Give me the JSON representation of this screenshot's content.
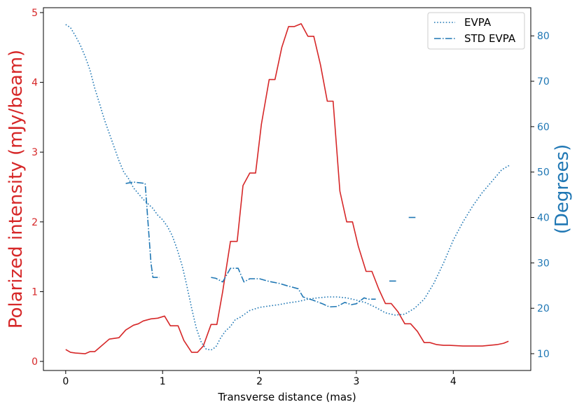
{
  "chart_data": {
    "type": "line",
    "xlabel": "Transverse distance (mas)",
    "ylabel_left": "Polarized intensity (mJy/beam)",
    "ylabel_right": "(Degrees)",
    "xlim": [
      -0.23,
      4.8
    ],
    "ylim_left": [
      -0.13,
      5.07
    ],
    "ylim_right": [
      6.3,
      86.2
    ],
    "x_ticks": [
      0,
      1,
      2,
      3,
      4
    ],
    "y_ticks_left": [
      0,
      1,
      2,
      3,
      4,
      5
    ],
    "y_ticks_right": [
      10,
      20,
      30,
      40,
      50,
      60,
      70,
      80
    ],
    "grid": false,
    "legend_position": "top-right",
    "colors": {
      "left_axis": "#d62728",
      "right_axis": "#1f77b4"
    },
    "series": [
      {
        "axis": "left",
        "style": "solid",
        "color": "#d62728",
        "points": [
          [
            0,
            0.17
          ],
          [
            0.05,
            0.13
          ],
          [
            0.1,
            0.12
          ],
          [
            0.2,
            0.11
          ],
          [
            0.25,
            0.14
          ],
          [
            0.3,
            0.14
          ],
          [
            0.35,
            0.2
          ],
          [
            0.45,
            0.32
          ],
          [
            0.55,
            0.34
          ],
          [
            0.62,
            0.45
          ],
          [
            0.7,
            0.52
          ],
          [
            0.75,
            0.54
          ],
          [
            0.8,
            0.58
          ],
          [
            0.88,
            0.61
          ],
          [
            0.95,
            0.62
          ],
          [
            1.02,
            0.65
          ],
          [
            1.08,
            0.51
          ],
          [
            1.16,
            0.51
          ],
          [
            1.22,
            0.3
          ],
          [
            1.3,
            0.13
          ],
          [
            1.36,
            0.13
          ],
          [
            1.42,
            0.22
          ],
          [
            1.5,
            0.53
          ],
          [
            1.56,
            0.53
          ],
          [
            1.62,
            1.0
          ],
          [
            1.7,
            1.72
          ],
          [
            1.77,
            1.72
          ],
          [
            1.83,
            2.52
          ],
          [
            1.9,
            2.7
          ],
          [
            1.96,
            2.7
          ],
          [
            2.02,
            3.4
          ],
          [
            2.1,
            4.04
          ],
          [
            2.16,
            4.04
          ],
          [
            2.23,
            4.5
          ],
          [
            2.3,
            4.8
          ],
          [
            2.36,
            4.8
          ],
          [
            2.43,
            4.84
          ],
          [
            2.5,
            4.66
          ],
          [
            2.56,
            4.66
          ],
          [
            2.63,
            4.25
          ],
          [
            2.7,
            3.73
          ],
          [
            2.76,
            3.73
          ],
          [
            2.83,
            2.44
          ],
          [
            2.9,
            2.0
          ],
          [
            2.96,
            2.0
          ],
          [
            3.02,
            1.65
          ],
          [
            3.1,
            1.29
          ],
          [
            3.16,
            1.29
          ],
          [
            3.23,
            1.04
          ],
          [
            3.3,
            0.83
          ],
          [
            3.36,
            0.83
          ],
          [
            3.43,
            0.71
          ],
          [
            3.5,
            0.54
          ],
          [
            3.56,
            0.54
          ],
          [
            3.63,
            0.43
          ],
          [
            3.7,
            0.27
          ],
          [
            3.76,
            0.27
          ],
          [
            3.83,
            0.24
          ],
          [
            3.9,
            0.23
          ],
          [
            3.96,
            0.23
          ],
          [
            4.1,
            0.22
          ],
          [
            4.3,
            0.22
          ],
          [
            4.45,
            0.24
          ],
          [
            4.52,
            0.26
          ],
          [
            4.57,
            0.29
          ]
        ]
      },
      {
        "name": "EVPA",
        "axis": "right",
        "style": "dotted",
        "color": "#1f77b4",
        "points": [
          [
            0,
            82.5
          ],
          [
            0.05,
            81.8
          ],
          [
            0.1,
            80.0
          ],
          [
            0.15,
            78.0
          ],
          [
            0.2,
            75.5
          ],
          [
            0.25,
            72.5
          ],
          [
            0.3,
            68.5
          ],
          [
            0.35,
            65.0
          ],
          [
            0.4,
            61.5
          ],
          [
            0.45,
            58.5
          ],
          [
            0.5,
            55.5
          ],
          [
            0.55,
            52.5
          ],
          [
            0.6,
            50.0
          ],
          [
            0.65,
            48.5
          ],
          [
            0.7,
            46.5
          ],
          [
            0.8,
            44.0
          ],
          [
            0.9,
            42.0
          ],
          [
            0.95,
            40.5
          ],
          [
            1.0,
            39.5
          ],
          [
            1.05,
            38.0
          ],
          [
            1.1,
            36.0
          ],
          [
            1.15,
            33.0
          ],
          [
            1.2,
            29.5
          ],
          [
            1.25,
            25.0
          ],
          [
            1.3,
            20.0
          ],
          [
            1.35,
            15.5
          ],
          [
            1.4,
            12.5
          ],
          [
            1.45,
            11.0
          ],
          [
            1.5,
            10.8
          ],
          [
            1.55,
            11.5
          ],
          [
            1.6,
            13.5
          ],
          [
            1.65,
            15.0
          ],
          [
            1.7,
            16.0
          ],
          [
            1.75,
            17.5
          ],
          [
            1.8,
            18.0
          ],
          [
            1.9,
            19.5
          ],
          [
            2.0,
            20.2
          ],
          [
            2.1,
            20.5
          ],
          [
            2.2,
            20.8
          ],
          [
            2.3,
            21.2
          ],
          [
            2.4,
            21.5
          ],
          [
            2.5,
            22.0
          ],
          [
            2.6,
            22.3
          ],
          [
            2.7,
            22.5
          ],
          [
            2.8,
            22.5
          ],
          [
            2.9,
            22.3
          ],
          [
            3.0,
            21.8
          ],
          [
            3.1,
            21.2
          ],
          [
            3.2,
            20.2
          ],
          [
            3.3,
            19.0
          ],
          [
            3.4,
            18.5
          ],
          [
            3.5,
            18.7
          ],
          [
            3.6,
            20.0
          ],
          [
            3.7,
            22.0
          ],
          [
            3.8,
            25.5
          ],
          [
            3.9,
            30.0
          ],
          [
            4.0,
            35.0
          ],
          [
            4.1,
            39.0
          ],
          [
            4.2,
            42.5
          ],
          [
            4.3,
            45.5
          ],
          [
            4.4,
            48.0
          ],
          [
            4.5,
            50.5
          ],
          [
            4.58,
            51.5
          ]
        ]
      },
      {
        "name": "STD EVPA",
        "axis": "right",
        "style": "dashdot",
        "color": "#1f77b4",
        "segments": [
          [
            [
              0.62,
              47.5
            ],
            [
              0.7,
              47.8
            ],
            [
              0.82,
              47.5
            ],
            [
              0.88,
              30.0
            ],
            [
              0.9,
              26.8
            ],
            [
              0.97,
              26.8
            ]
          ],
          [
            [
              1.5,
              26.8
            ],
            [
              1.55,
              26.6
            ],
            [
              1.62,
              25.8
            ],
            [
              1.7,
              28.8
            ],
            [
              1.78,
              28.8
            ],
            [
              1.84,
              25.8
            ],
            [
              1.9,
              26.5
            ],
            [
              2.0,
              26.5
            ],
            [
              2.1,
              25.9
            ],
            [
              2.2,
              25.5
            ],
            [
              2.28,
              25.0
            ],
            [
              2.4,
              24.3
            ],
            [
              2.45,
              22.5
            ],
            [
              2.55,
              21.8
            ],
            [
              2.65,
              21.0
            ],
            [
              2.72,
              20.3
            ],
            [
              2.8,
              20.4
            ],
            [
              2.88,
              21.3
            ],
            [
              2.95,
              20.8
            ],
            [
              3.0,
              21.0
            ],
            [
              3.08,
              22.3
            ],
            [
              3.12,
              22.0
            ],
            [
              3.2,
              22.0
            ]
          ],
          [
            [
              3.34,
              26.0
            ],
            [
              3.42,
              26.0
            ]
          ],
          [
            [
              3.54,
              40.0
            ],
            [
              3.62,
              40.0
            ]
          ]
        ]
      }
    ],
    "legend": [
      "EVPA",
      "STD EVPA"
    ]
  }
}
